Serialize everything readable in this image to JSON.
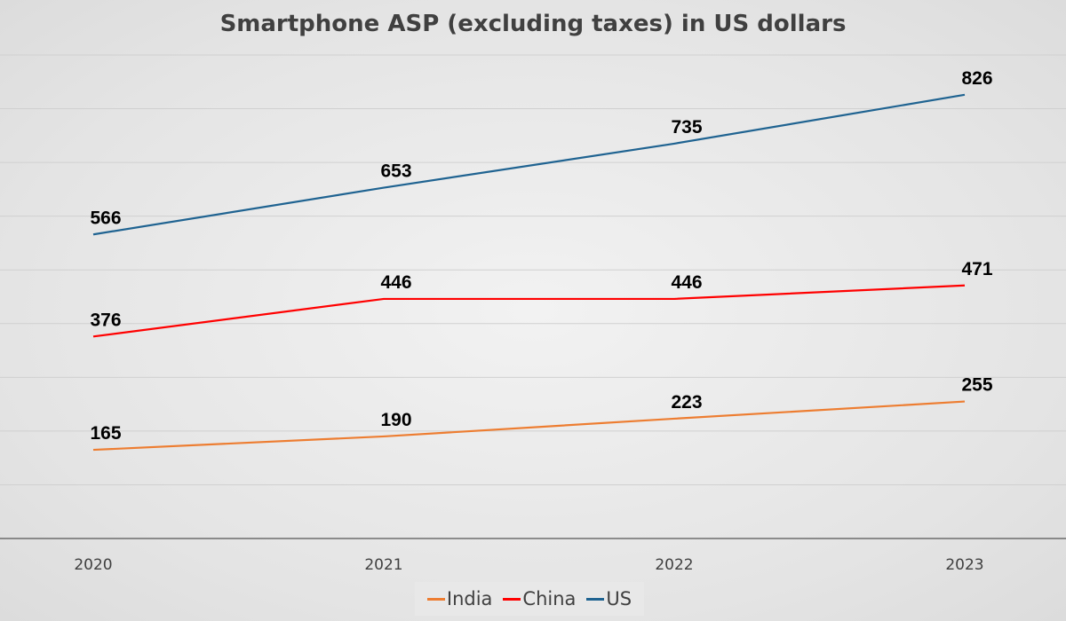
{
  "chart_data": {
    "type": "line",
    "title": "Smartphone ASP (excluding taxes) in US dollars",
    "categories": [
      "2020",
      "2021",
      "2022",
      "2023"
    ],
    "series": [
      {
        "name": "India",
        "values": [
          165,
          190,
          223,
          255
        ],
        "color": "#ed7d31"
      },
      {
        "name": "China",
        "values": [
          376,
          446,
          446,
          471
        ],
        "color": "#ff0000"
      },
      {
        "name": "US",
        "values": [
          566,
          653,
          735,
          826
        ],
        "color": "#1f6391"
      }
    ],
    "ylim": [
      0,
      900
    ],
    "grid": true,
    "gridline_step": 100,
    "y_tick_labels_shown": false,
    "data_labels": true,
    "legend": "bottom"
  }
}
